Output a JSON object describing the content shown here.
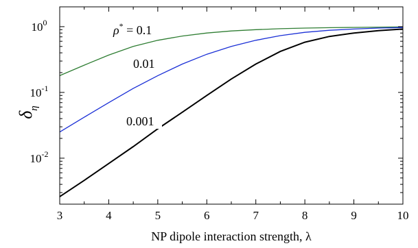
{
  "chart_data": {
    "type": "line",
    "xlabel": "NP dipole interaction strength, λ",
    "ylabel": "δ",
    "ylabel_sub": "η",
    "xlim": [
      3,
      10
    ],
    "ylim": [
      0.002,
      2
    ],
    "yscale": "log",
    "grid": false,
    "x_ticks": [
      "3",
      "4",
      "5",
      "6",
      "7",
      "8",
      "9",
      "10"
    ],
    "y_ticks": [
      {
        "value": 1,
        "base": "10",
        "exp": "0"
      },
      {
        "value": 0.1,
        "base": "10",
        "exp": "-1"
      },
      {
        "value": 0.01,
        "base": "10",
        "exp": "-2"
      }
    ],
    "series": [
      {
        "label": "0.1",
        "color": "#2e7d32",
        "x": [
          3.0,
          3.5,
          4.0,
          4.5,
          5.0,
          5.5,
          6.0,
          6.5,
          7.0,
          7.5,
          8.0,
          8.5,
          9.0,
          9.5,
          10.0
        ],
        "y": [
          0.18,
          0.26,
          0.37,
          0.5,
          0.62,
          0.72,
          0.8,
          0.86,
          0.9,
          0.93,
          0.95,
          0.965,
          0.975,
          0.983,
          0.99
        ]
      },
      {
        "label": "0.01",
        "color": "#1a2fd6",
        "x": [
          3.0,
          3.5,
          4.0,
          4.5,
          5.0,
          5.5,
          6.0,
          6.5,
          7.0,
          7.5,
          8.0,
          8.5,
          9.0,
          9.5,
          10.0
        ],
        "y": [
          0.025,
          0.042,
          0.07,
          0.115,
          0.18,
          0.27,
          0.38,
          0.5,
          0.62,
          0.73,
          0.82,
          0.88,
          0.92,
          0.95,
          0.97
        ]
      },
      {
        "label": "0.001",
        "color": "#000000",
        "x": [
          3.0,
          3.5,
          4.0,
          4.5,
          5.0,
          5.5,
          6.0,
          6.5,
          7.0,
          7.5,
          8.0,
          8.5,
          9.0,
          9.5,
          10.0
        ],
        "y": [
          0.0026,
          0.0046,
          0.0083,
          0.015,
          0.028,
          0.05,
          0.09,
          0.16,
          0.27,
          0.42,
          0.58,
          0.71,
          0.8,
          0.87,
          0.92
        ]
      }
    ],
    "annotations": {
      "rho_symbol": "ρ",
      "rho_sup": "*",
      "rho_eq": " = 0.1",
      "label_001": "0.01",
      "label_0001": "0.001"
    }
  }
}
